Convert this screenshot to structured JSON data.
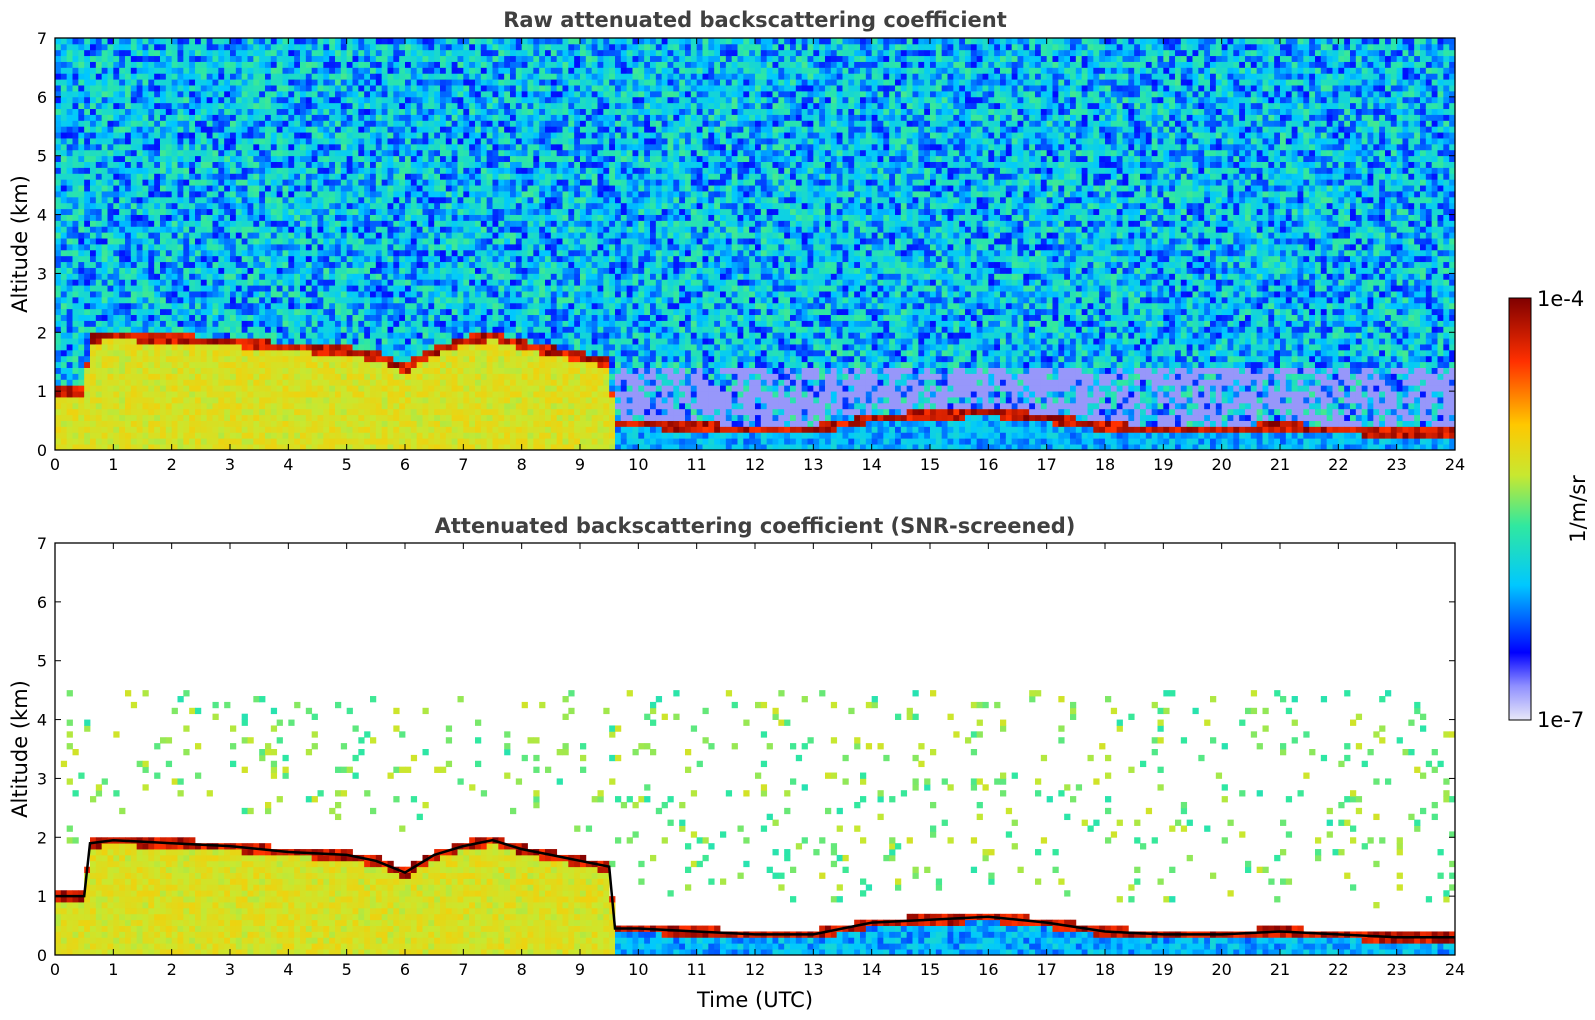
{
  "chart_data": [
    {
      "type": "heatmap",
      "title": "Raw attenuated backscattering coefficient",
      "xlabel": "",
      "ylabel": "Altitude (km)",
      "xlim": [
        0,
        24
      ],
      "ylim": [
        0,
        7
      ],
      "xticks": [
        0,
        1,
        2,
        3,
        4,
        5,
        6,
        7,
        8,
        9,
        10,
        11,
        12,
        13,
        14,
        15,
        16,
        17,
        18,
        19,
        20,
        21,
        22,
        23,
        24
      ],
      "yticks": [
        0,
        1,
        2,
        3,
        4,
        5,
        6,
        7
      ],
      "screened": false,
      "layer_top_km": [
        [
          0,
          1.0
        ],
        [
          0.5,
          1.0
        ],
        [
          0.6,
          1.9
        ],
        [
          1,
          1.95
        ],
        [
          2,
          1.9
        ],
        [
          3,
          1.85
        ],
        [
          4,
          1.75
        ],
        [
          5,
          1.7
        ],
        [
          5.5,
          1.6
        ],
        [
          6,
          1.4
        ],
        [
          6.5,
          1.7
        ],
        [
          7,
          1.85
        ],
        [
          7.5,
          1.95
        ],
        [
          8,
          1.8
        ],
        [
          8.5,
          1.7
        ],
        [
          9,
          1.6
        ],
        [
          9.5,
          1.5
        ],
        [
          9.6,
          0.45
        ],
        [
          10,
          0.45
        ],
        [
          11,
          0.4
        ],
        [
          12,
          0.35
        ],
        [
          13,
          0.35
        ],
        [
          14,
          0.55
        ],
        [
          15,
          0.6
        ],
        [
          16,
          0.65
        ],
        [
          17,
          0.55
        ],
        [
          18,
          0.4
        ],
        [
          19,
          0.35
        ],
        [
          20,
          0.35
        ],
        [
          21,
          0.4
        ],
        [
          22,
          0.35
        ],
        [
          23,
          0.3
        ],
        [
          23.5,
          0.3
        ],
        [
          24,
          0.3
        ]
      ]
    },
    {
      "type": "heatmap",
      "title": "Attenuated backscattering coefficient (SNR-screened)",
      "xlabel": "Time (UTC)",
      "ylabel": "Altitude (km)",
      "xlim": [
        0,
        24
      ],
      "ylim": [
        0,
        7
      ],
      "xticks": [
        0,
        1,
        2,
        3,
        4,
        5,
        6,
        7,
        8,
        9,
        10,
        11,
        12,
        13,
        14,
        15,
        16,
        17,
        18,
        19,
        20,
        21,
        22,
        23,
        24
      ],
      "yticks": [
        0,
        1,
        2,
        3,
        4,
        5,
        6,
        7
      ],
      "screened": true
    }
  ],
  "colorbar": {
    "label": "1/m/sr",
    "max_label": "1e-4",
    "min_label": "1e-7",
    "scale": "log",
    "range": [
      1e-07,
      0.0001
    ],
    "colors": [
      "#e8e8f8",
      "#0000ff",
      "#00c8ff",
      "#30e8a0",
      "#c8e830",
      "#ffc800",
      "#ff3000",
      "#800000"
    ]
  }
}
